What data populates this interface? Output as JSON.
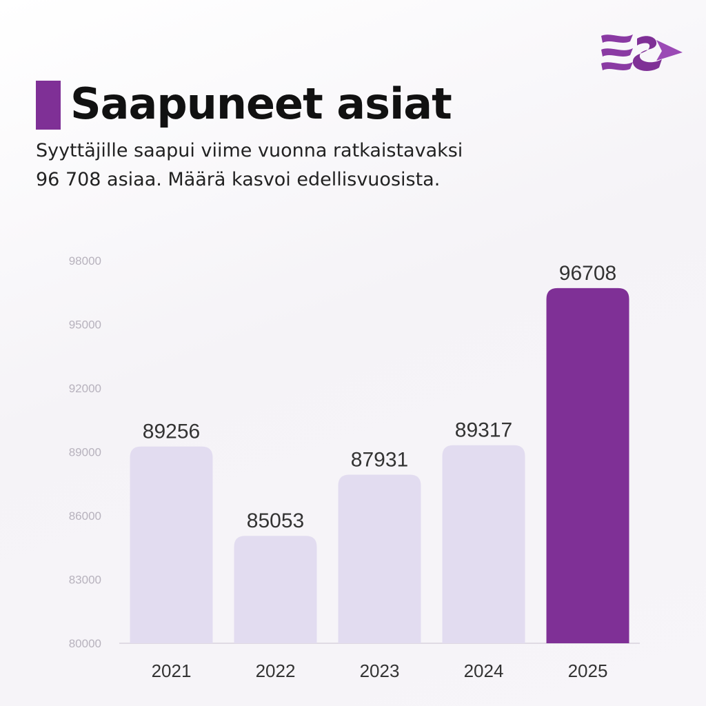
{
  "header": {
    "title": "Saapuneet asiat",
    "subtitle_line1": "Syyttäjille saapui viime vuonna ratkaistavaksi",
    "subtitle_line2": "96 708 asiaa. Määrä kasvoi edellisvuosista."
  },
  "logo": {
    "icon": "syyttajalaitos-logo-icon"
  },
  "colors": {
    "accent": "#7f3096",
    "bar_muted": "#e2dcf0",
    "background": "#f7f5f9"
  },
  "chart_data": {
    "type": "bar",
    "categories": [
      "2021",
      "2022",
      "2023",
      "2024",
      "2025"
    ],
    "values": [
      89256,
      85053,
      87931,
      89317,
      96708
    ],
    "highlight_index": 4,
    "title": "",
    "xlabel": "",
    "ylabel": "",
    "ylim": [
      80000,
      98000
    ],
    "yticks": [
      98000,
      95000,
      92000,
      89000,
      86000,
      83000,
      80000
    ],
    "grid": false,
    "data_labels": true
  }
}
